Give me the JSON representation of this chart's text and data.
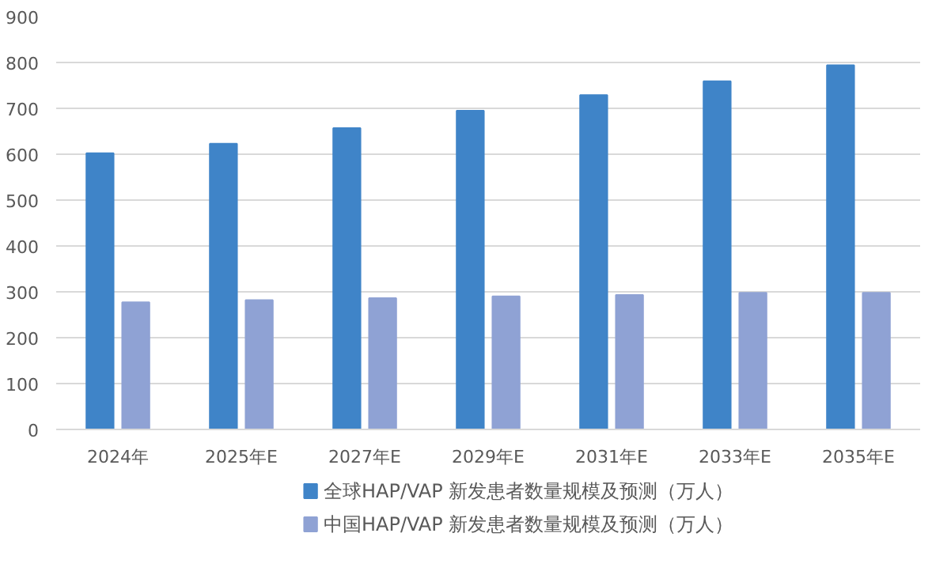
{
  "chart_data": {
    "type": "bar",
    "categories": [
      "2024年",
      "2025年E",
      "2027年E",
      "2029年E",
      "2031年E",
      "2033年E",
      "2035年E"
    ],
    "series": [
      {
        "name": "全球HAP/VAP 新发患者数量规模及预测（万人）",
        "color": "#3f84c8",
        "values": [
          602,
          623,
          657,
          695,
          729,
          759,
          794
        ]
      },
      {
        "name": "中国HAP/VAP 新发患者数量规模及预测（万人）",
        "color": "#8fa2d4",
        "values": [
          277,
          282,
          286,
          290,
          293,
          298,
          298
        ]
      }
    ],
    "ylim": [
      0,
      900
    ],
    "yticks": [
      0,
      100,
      200,
      300,
      400,
      500,
      600,
      700,
      800,
      900
    ],
    "grid": "y",
    "legend": "bottom"
  }
}
